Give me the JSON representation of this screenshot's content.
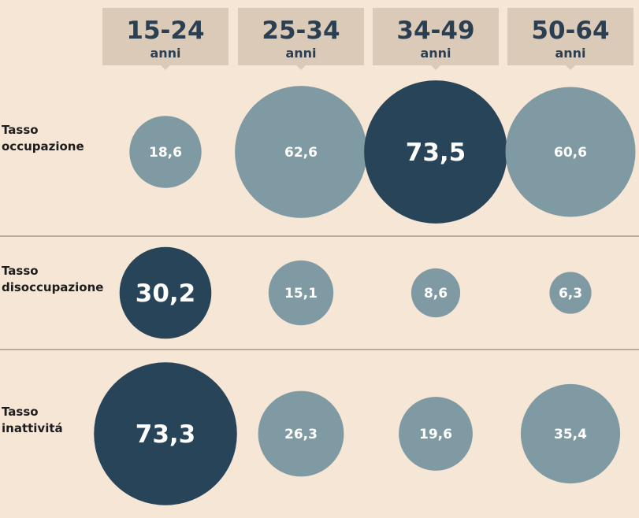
{
  "chart_data": {
    "type": "bubble-matrix",
    "columns": [
      {
        "range": "15-24",
        "unit": "anni"
      },
      {
        "range": "25-34",
        "unit": "anni"
      },
      {
        "range": "34-49",
        "unit": "anni"
      },
      {
        "range": "50-64",
        "unit": "anni"
      }
    ],
    "rows": [
      {
        "label": [
          "Tasso",
          "occupazione"
        ],
        "values": [
          18.6,
          62.6,
          73.5,
          60.6
        ],
        "labels": [
          "18,6",
          "62,6",
          "73,5",
          "60,6"
        ],
        "highlight": 2
      },
      {
        "label": [
          "Tasso",
          "disoccupazione"
        ],
        "values": [
          30.2,
          15.1,
          8.6,
          6.3
        ],
        "labels": [
          "30,2",
          "15,1",
          "8,6",
          "6,3"
        ],
        "highlight": 0
      },
      {
        "label": [
          "Tasso",
          "inattivitá"
        ],
        "values": [
          73.3,
          26.3,
          19.6,
          35.4
        ],
        "labels": [
          "73,3",
          "26,3",
          "19,6",
          "35,4"
        ],
        "highlight": 0
      }
    ],
    "colors": {
      "background": "#f6e6d6",
      "header_box": "#dccab9",
      "bubble": "#7f9aa3",
      "bubble_highlight": "#274458",
      "divider": "#a8988a",
      "header_text": "#2a3f51"
    }
  }
}
